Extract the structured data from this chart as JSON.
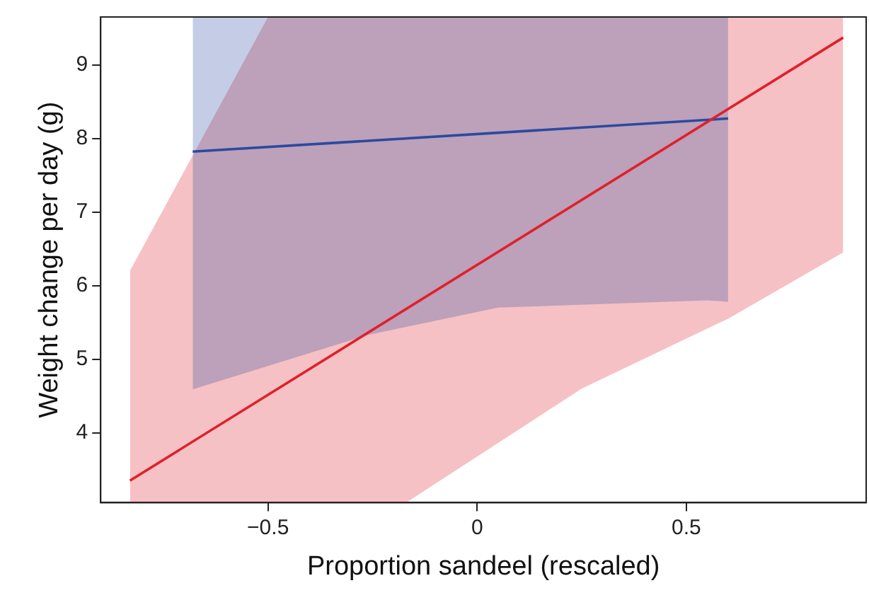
{
  "chart_data": {
    "type": "line",
    "xlabel": "Proportion sandeel (rescaled)",
    "ylabel": "Weight change per day (g)",
    "xlim": [
      -0.9,
      0.93
    ],
    "ylim": [
      3.05,
      9.65
    ],
    "xticks": [
      {
        "value": -0.5,
        "label": "−0.5"
      },
      0,
      0.5
    ],
    "yticks": [
      4,
      5,
      6,
      7,
      8,
      9
    ],
    "grid": false,
    "legend": false,
    "marker": "none",
    "line_style": "solid",
    "series": [
      {
        "color": "#e0202a",
        "x": [
          -0.83,
          -0.5,
          -0.17,
          0.25,
          0.6,
          0.875
        ],
        "values": [
          3.35,
          null,
          null,
          null,
          null,
          9.37
        ],
        "lower": [
          3.05,
          3.05,
          3.05,
          4.6,
          5.55,
          6.45
        ],
        "upper": [
          6.2,
          9.65,
          9.65,
          9.65,
          9.65,
          9.65
        ]
      },
      {
        "color": "#2a4aa0",
        "x": [
          -0.68,
          -0.26,
          0.05,
          0.55,
          0.6
        ],
        "values": [
          7.82,
          null,
          null,
          null,
          8.27
        ],
        "lower": [
          4.59,
          5.33,
          5.7,
          5.8,
          5.78
        ],
        "upper": [
          9.65,
          9.65,
          9.65,
          9.65,
          9.65
        ]
      }
    ]
  }
}
